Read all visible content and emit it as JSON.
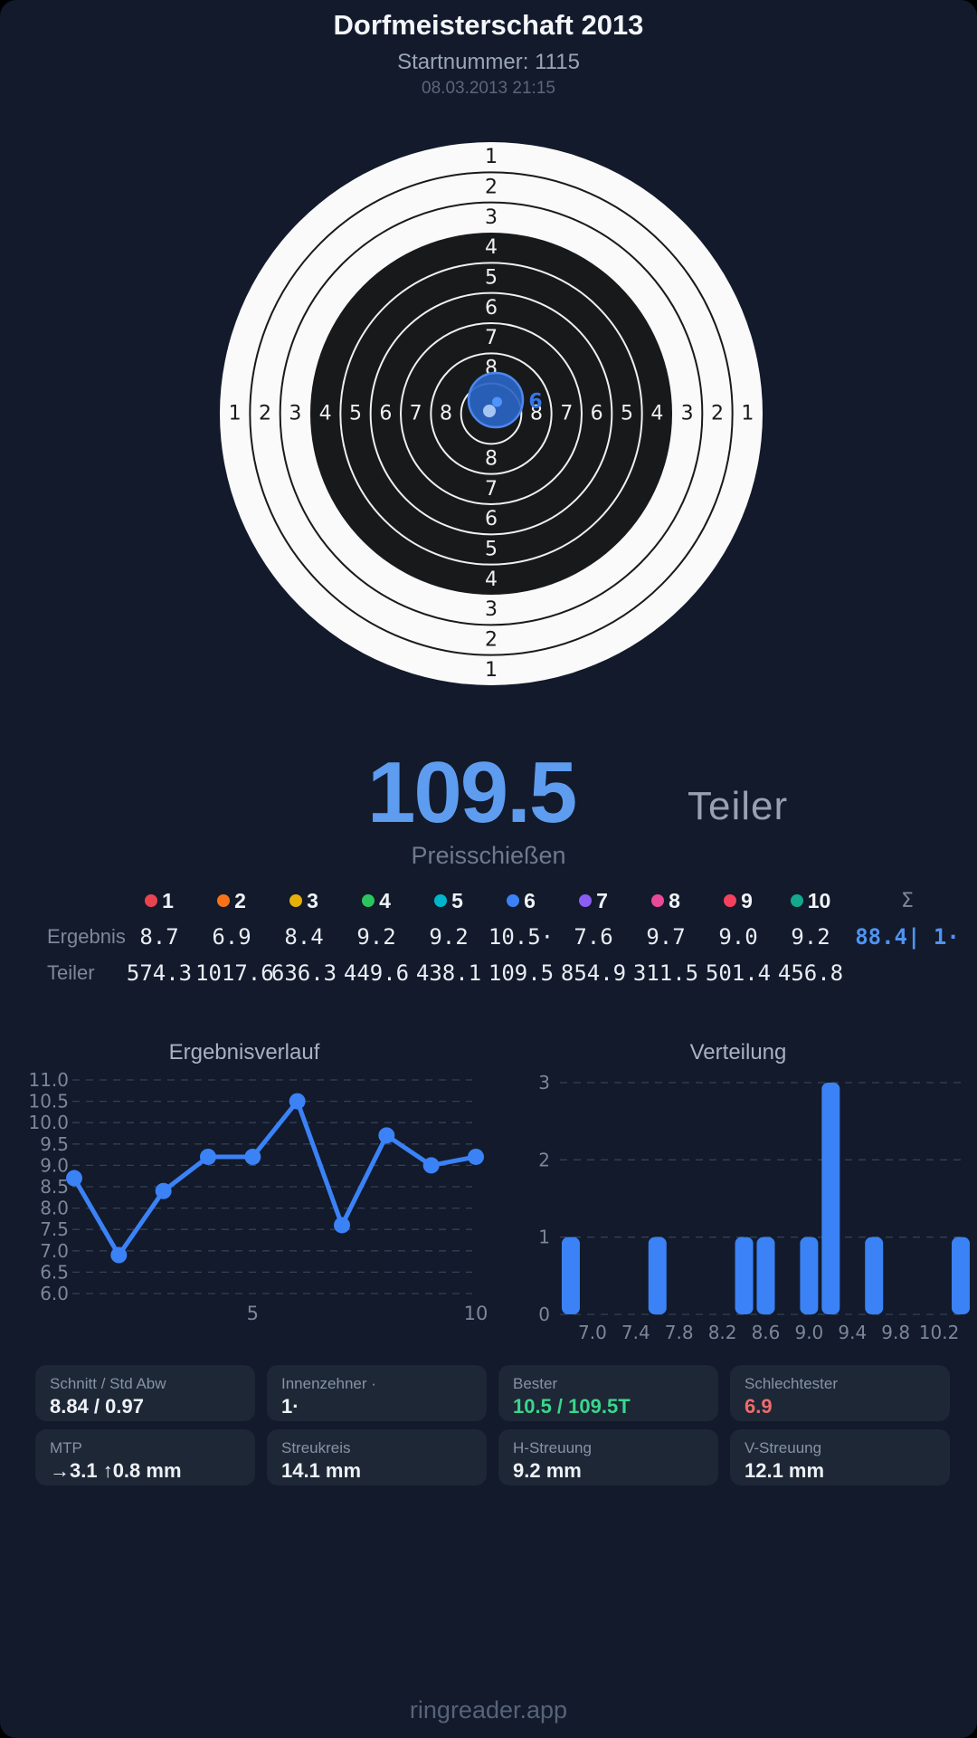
{
  "header": {
    "title": "Dorfmeisterschaft 2013",
    "subtitle": "Startnummer: 1115",
    "datetime": "08.03.2013 21:15"
  },
  "score": {
    "value": "109.5",
    "unit": "Teiler",
    "discipline": "Preisschießen"
  },
  "target": {
    "ring_labels": [
      "1",
      "2",
      "3",
      "4",
      "5",
      "6",
      "7",
      "8"
    ],
    "shot": {
      "label": "6",
      "score": "10.5",
      "teiler": "109.5"
    },
    "colors": {
      "paper": "#fafafa",
      "bull": "#18191b",
      "ink": "#1a1a1a",
      "ink_on_bull": "#f0f0f0",
      "shot_fill": "#2b64c4",
      "shot_stroke": "#4c88ec",
      "shot_dot": "#4f94fb",
      "mtp_dot": "#a5c6f3",
      "shot_label_color": "#3776e8"
    }
  },
  "table": {
    "sum_header": "Σ",
    "columns": [
      {
        "num": "1",
        "color": "#ea4350"
      },
      {
        "num": "2",
        "color": "#f97316"
      },
      {
        "num": "3",
        "color": "#e7b008"
      },
      {
        "num": "4",
        "color": "#2bc45e"
      },
      {
        "num": "5",
        "color": "#00b4cc"
      },
      {
        "num": "6",
        "color": "#3b82f6"
      },
      {
        "num": "7",
        "color": "#8b5cf6"
      },
      {
        "num": "8",
        "color": "#ec4899"
      },
      {
        "num": "9",
        "color": "#f4415e"
      },
      {
        "num": "10",
        "color": "#14a98e"
      }
    ],
    "rows": [
      {
        "label": "Ergebnis",
        "values": [
          "8.7",
          "6.9",
          "8.4",
          "9.2",
          "9.2",
          "10.5·",
          "7.6",
          "9.7",
          "9.0",
          "9.2"
        ],
        "sum": "88.4| 1·"
      },
      {
        "label": "Teiler",
        "values": [
          "574.3",
          "1017.6",
          "636.3",
          "449.6",
          "438.1",
          "109.5",
          "854.9",
          "311.5",
          "501.4",
          "456.8"
        ],
        "sum": ""
      }
    ]
  },
  "chart_data": [
    {
      "type": "line",
      "title": "Ergebnisverlauf",
      "xlabel": "",
      "ylabel": "",
      "x": [
        1,
        2,
        3,
        4,
        5,
        6,
        7,
        8,
        9,
        10
      ],
      "values": [
        8.7,
        6.9,
        8.4,
        9.2,
        9.2,
        10.5,
        7.6,
        9.7,
        9.0,
        9.2
      ],
      "ylim": [
        6.0,
        11.0
      ],
      "ytick_step": 0.5,
      "xticks": [
        5,
        10
      ],
      "grid": true,
      "legend": "none",
      "color": "#3b82f6"
    },
    {
      "type": "bar",
      "title": "Verteilung",
      "xlabel": "",
      "ylabel": "",
      "bin_centers": [
        6.8,
        7.6,
        8.4,
        8.6,
        9.0,
        9.2,
        9.6,
        10.4
      ],
      "counts": [
        1,
        1,
        1,
        1,
        1,
        3,
        1,
        1
      ],
      "xticks": [
        "7.0",
        "7.4",
        "7.8",
        "8.2",
        "8.6",
        "9.0",
        "9.4",
        "9.8",
        "10.2"
      ],
      "yticks": [
        0,
        1,
        2,
        3
      ],
      "ylim": [
        0,
        3
      ],
      "xlim": [
        6.7,
        10.45
      ],
      "grid": true,
      "legend": "none",
      "color": "#3b82f6"
    }
  ],
  "stats": [
    {
      "label": "Schnitt / Std Abw",
      "value": "8.84 / 0.97",
      "value_color": "#eef1f6"
    },
    {
      "label": "Innenzehner ·",
      "value": "1·",
      "value_color": "#eef1f6"
    },
    {
      "label": "Bester",
      "value": "10.5 / 109.5T",
      "value_color": "#3bd68c"
    },
    {
      "label": "Schlechtester",
      "value": "6.9",
      "value_color": "#f16b6b"
    },
    {
      "label": "MTP",
      "value": "→3.1 ↑0.8 mm",
      "value_color": "#eef1f6"
    },
    {
      "label": "Streukreis",
      "value": "14.1 mm",
      "value_color": "#eef1f6"
    },
    {
      "label": "H-Streuung",
      "value": "9.2 mm",
      "value_color": "#eef1f6"
    },
    {
      "label": "V-Streuung",
      "value": "12.1 mm",
      "value_color": "#eef1f6"
    }
  ],
  "footer": {
    "brand": "ringreader.app"
  }
}
